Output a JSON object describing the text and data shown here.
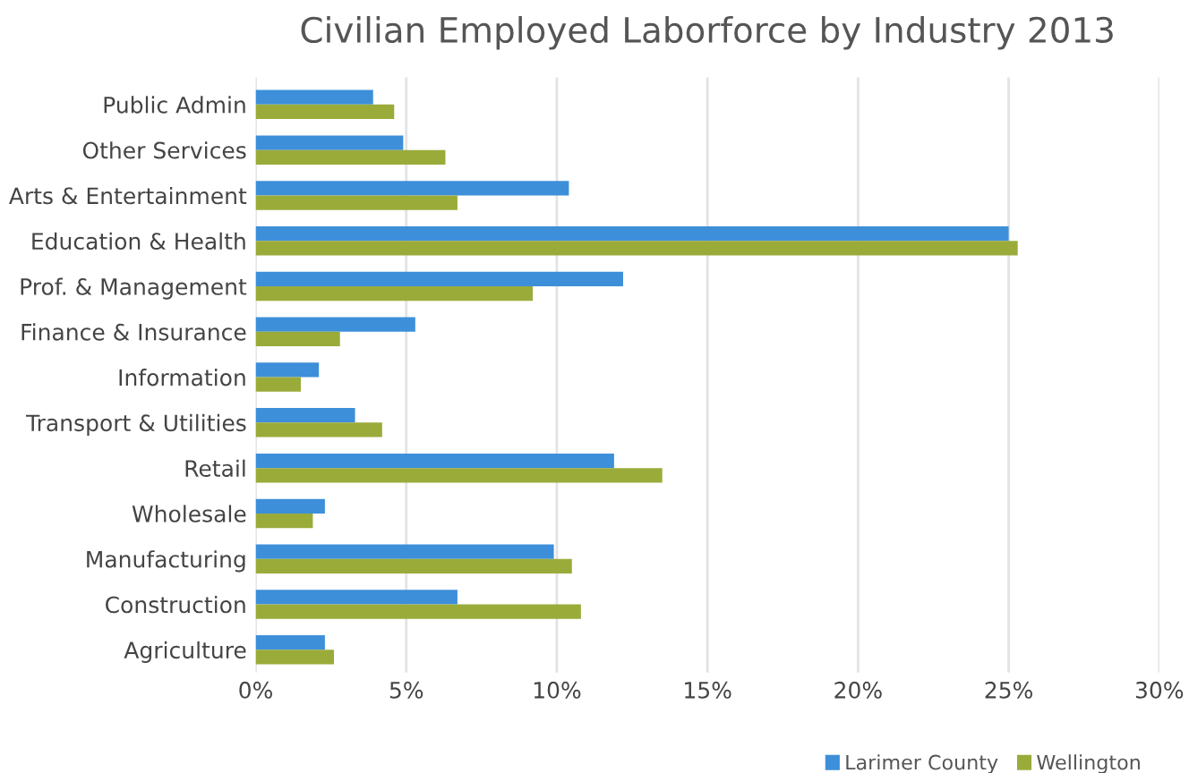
{
  "chart_data": {
    "type": "bar",
    "orientation": "horizontal",
    "title": "Civilian Employed Laborforce by Industry 2013",
    "categories": [
      "Public Admin",
      "Other Services",
      "Arts & Entertainment",
      "Education & Health",
      "Prof. & Management",
      "Finance & Insurance",
      "Information",
      "Transport & Utilities",
      "Retail",
      "Wholesale",
      "Manufacturing",
      "Construction",
      "Agriculture"
    ],
    "series": [
      {
        "name": "Larimer County",
        "color": "#3d8fd9",
        "values": [
          3.9,
          4.9,
          10.4,
          25.0,
          12.2,
          5.3,
          2.1,
          3.3,
          11.9,
          2.3,
          9.9,
          6.7,
          2.3
        ]
      },
      {
        "name": "Wellington",
        "color": "#9aab3a",
        "values": [
          4.6,
          6.3,
          6.7,
          25.3,
          9.2,
          2.8,
          1.5,
          4.2,
          13.5,
          1.9,
          10.5,
          10.8,
          2.6
        ]
      }
    ],
    "xlim": [
      0,
      30
    ],
    "xticks": [
      {
        "value": 0,
        "label": "0%"
      },
      {
        "value": 5,
        "label": "5%"
      },
      {
        "value": 10,
        "label": "10%"
      },
      {
        "value": 15,
        "label": "15%"
      },
      {
        "value": 20,
        "label": "20%"
      },
      {
        "value": 25,
        "label": "25%"
      },
      {
        "value": 30,
        "label": "30%"
      }
    ],
    "grid": "x",
    "legend": "bottom right"
  }
}
